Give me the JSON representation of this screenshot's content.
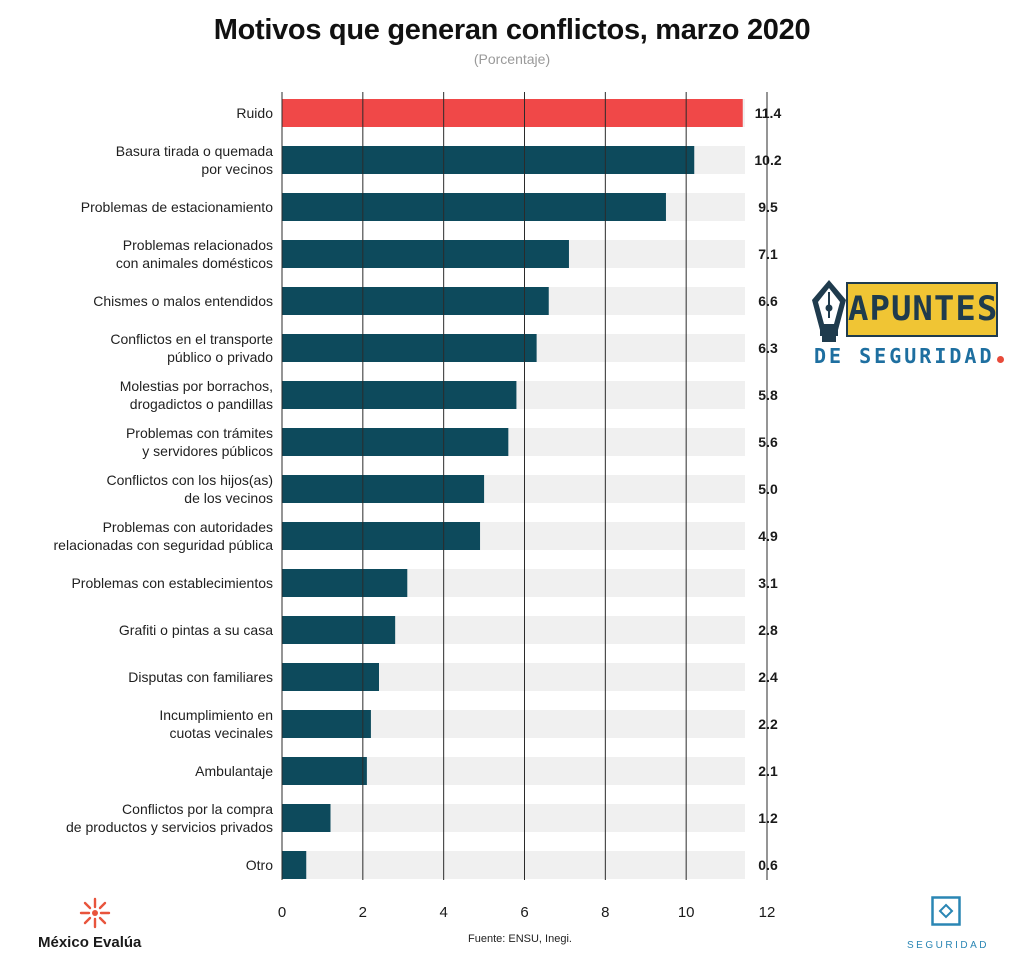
{
  "header": {
    "title": "Motivos que generan conflictos, marzo 2020",
    "subtitle": "(Porcentaje)"
  },
  "footer": {
    "source": "Fuente: ENSU, Inegi.",
    "org_name": "México Evalúa",
    "seg_label": "SEGURIDAD",
    "apuntes_title": "APUNTES",
    "apuntes_sub": "DE SEGURIDAD"
  },
  "colors": {
    "highlight": "#f04848",
    "bar": "#0d4a5c",
    "track": "#f0f0f0",
    "grid": "#2b2b2b"
  },
  "chart_data": {
    "type": "bar",
    "orientation": "horizontal",
    "title": "Motivos que generan conflictos, marzo 2020",
    "subtitle": "(Porcentaje)",
    "xlim": [
      0,
      12
    ],
    "xticks": [
      0,
      2,
      4,
      6,
      8,
      10,
      12
    ],
    "grid": true,
    "highlight_index": 0,
    "categories": [
      [
        "Ruido"
      ],
      [
        "Basura tirada o quemada",
        "por vecinos"
      ],
      [
        "Problemas de estacionamiento"
      ],
      [
        "Problemas relacionados",
        "con animales domésticos"
      ],
      [
        "Chismes o malos entendidos"
      ],
      [
        "Conflictos en el transporte",
        "público o privado"
      ],
      [
        "Molestias por borrachos,",
        "drogadictos o pandillas"
      ],
      [
        "Problemas con trámites",
        "y servidores públicos"
      ],
      [
        "Conflictos con los hijos(as)",
        "de los vecinos"
      ],
      [
        "Problemas con autoridades",
        "relacionadas con seguridad pública"
      ],
      [
        "Problemas con establecimientos"
      ],
      [
        "Grafiti o pintas a su casa"
      ],
      [
        "Disputas con familiares"
      ],
      [
        "Incumplimiento en",
        "cuotas vecinales"
      ],
      [
        "Ambulantaje"
      ],
      [
        "Conflictos por la compra",
        "de productos y servicios privados"
      ],
      [
        "Otro"
      ]
    ],
    "values": [
      11.4,
      10.2,
      9.5,
      7.1,
      6.6,
      6.3,
      5.8,
      5.6,
      5.0,
      4.9,
      3.1,
      2.8,
      2.4,
      2.2,
      2.1,
      1.2,
      0.6
    ],
    "value_labels": [
      "11.4",
      "10.2",
      "9.5",
      "7.1",
      "6.6",
      "6.3",
      "5.8",
      "5.6",
      "5.0",
      "4.9",
      "3.1",
      "2.8",
      "2.4",
      "2.2",
      "2.1",
      "1.2",
      "0.6"
    ]
  }
}
